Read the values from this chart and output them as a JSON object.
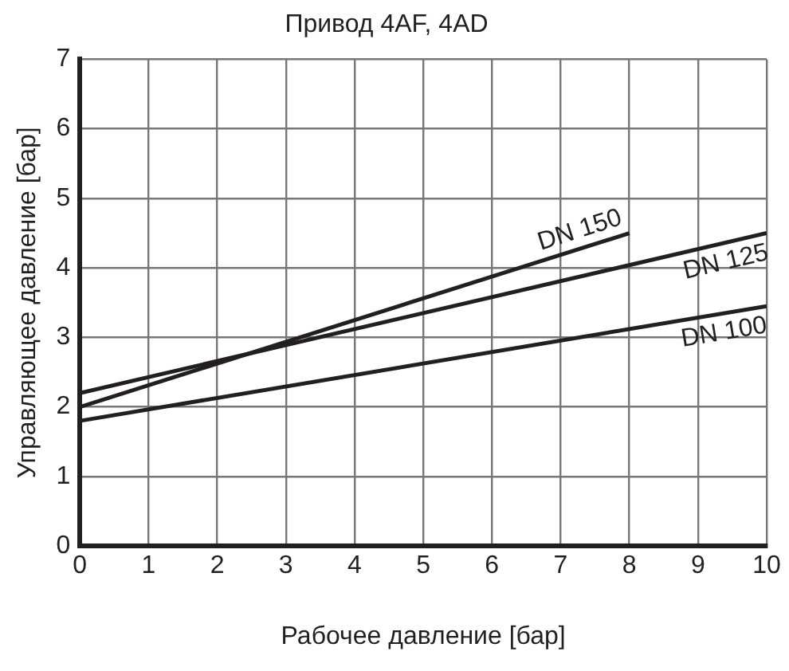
{
  "chart_data": {
    "type": "line",
    "title": "Привод 4AF, 4AD",
    "xlabel": "Рабочее давление [бар]",
    "ylabel": "Управляющее давление [бар]",
    "series": [
      {
        "name": "DN 150",
        "color": "#231f20",
        "x": [
          0,
          8
        ],
        "values": [
          2.0,
          4.5
        ]
      },
      {
        "name": "DN 125",
        "color": "#231f20",
        "x": [
          0,
          10
        ],
        "values": [
          2.2,
          4.5
        ]
      },
      {
        "name": "DN 100",
        "color": "#231f20",
        "x": [
          0,
          10
        ],
        "values": [
          1.8,
          3.45
        ]
      }
    ],
    "xlim": [
      0,
      10
    ],
    "xticks": [
      0,
      1,
      2,
      3,
      4,
      5,
      6,
      7,
      8,
      9,
      10
    ],
    "ylim": [
      0,
      7
    ],
    "yticks": [
      0,
      1,
      2,
      3,
      4,
      5,
      6,
      7
    ],
    "grid": true,
    "legend": false,
    "marker": "none",
    "line_style": "solid"
  }
}
